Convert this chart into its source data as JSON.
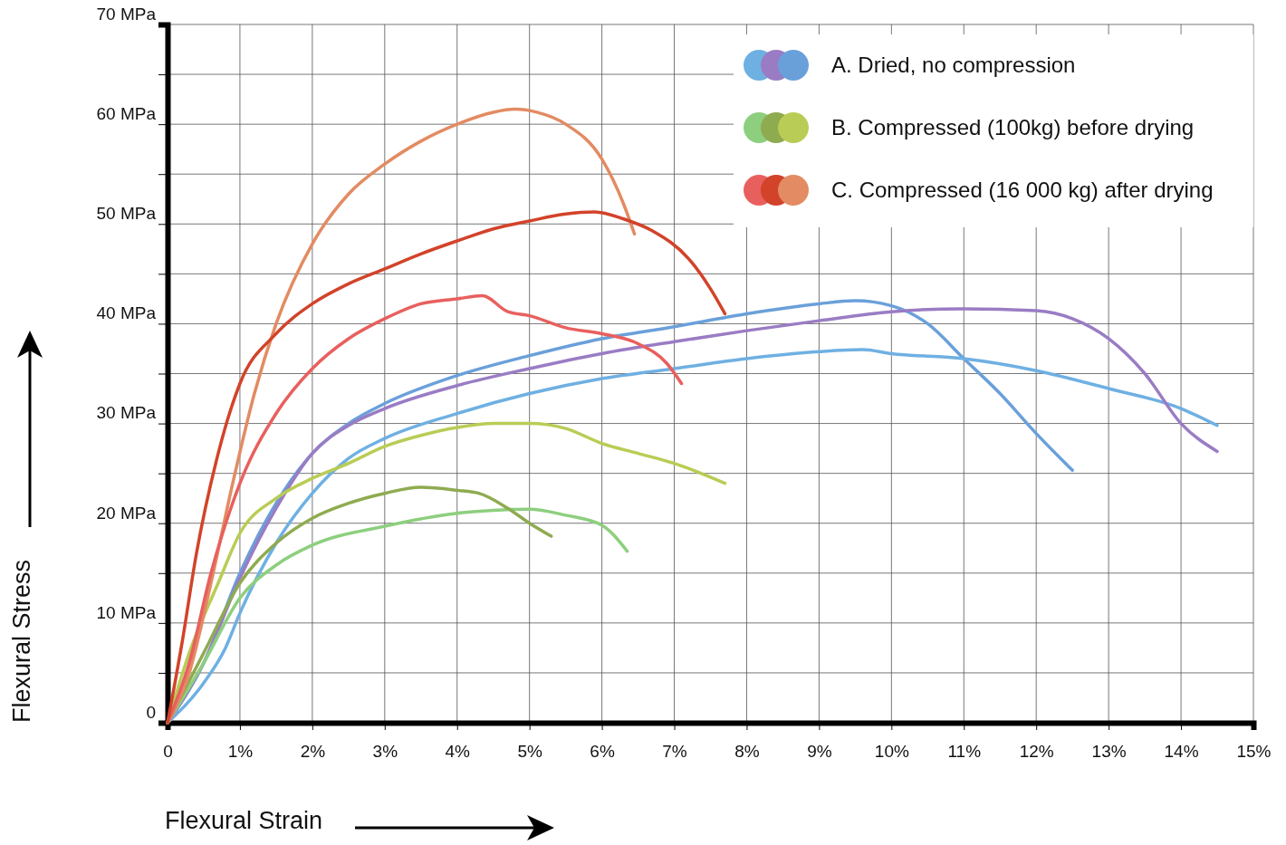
{
  "chart_data": {
    "type": "line",
    "xlabel": "Flexural Strain",
    "ylabel": "Flexural Stress",
    "xlim": [
      0,
      15
    ],
    "ylim": [
      0,
      70
    ],
    "xticks": [
      0,
      {
        "value": 1,
        "label": "1%"
      },
      {
        "value": 2,
        "label": "2%"
      },
      {
        "value": 3,
        "label": "3%"
      },
      {
        "value": 4,
        "label": "4%"
      },
      {
        "value": 5,
        "label": "5%"
      },
      {
        "value": 6,
        "label": "6%"
      },
      {
        "value": 7,
        "label": "7%"
      },
      {
        "value": 8,
        "label": "8%"
      },
      {
        "value": 9,
        "label": "9%"
      },
      {
        "value": 10,
        "label": "10%"
      },
      {
        "value": 11,
        "label": "11%"
      },
      {
        "value": 12,
        "label": "12%"
      },
      {
        "value": 13,
        "label": "13%"
      },
      {
        "value": 14,
        "label": "14%"
      },
      {
        "value": 15,
        "label": "15%"
      }
    ],
    "yticks": [
      0,
      {
        "value": 5,
        "label": null
      },
      {
        "value": 10,
        "label": "10 MPa"
      },
      {
        "value": 15,
        "label": null
      },
      {
        "value": 20,
        "label": "20 MPa"
      },
      {
        "value": 25,
        "label": null
      },
      {
        "value": 30,
        "label": "30 MPa"
      },
      {
        "value": 35,
        "label": null
      },
      {
        "value": 40,
        "label": "40 MPa"
      },
      {
        "value": 45,
        "label": null
      },
      {
        "value": 50,
        "label": "50 MPa"
      },
      {
        "value": 55,
        "label": null
      },
      {
        "value": 60,
        "label": "60 MPa"
      },
      {
        "value": 65,
        "label": null
      },
      {
        "value": 70,
        "label": "70 MPa"
      }
    ],
    "grid": true,
    "legend": "top right",
    "marker": "none",
    "line_style": "solid",
    "series": [
      {
        "name": "A. Dried, no compression",
        "color": "#6aa0da",
        "x": [
          0,
          0.5,
          1,
          1.5,
          2,
          2.5,
          3,
          4,
          5,
          6,
          7,
          8,
          9,
          9.5,
          10,
          10.5,
          11,
          11.5,
          12,
          12.5
        ],
        "values": [
          0,
          6,
          15,
          22,
          27,
          30,
          32,
          34.8,
          36.8,
          38.5,
          39.7,
          41,
          42,
          42.3,
          41.8,
          40,
          36.5,
          33,
          29,
          25.3
        ]
      },
      {
        "color": "#6fb0e2",
        "x": [
          0,
          0.5,
          0.8,
          1,
          1.5,
          2,
          2.5,
          3,
          4,
          5,
          6,
          7,
          8,
          9,
          9.6,
          10,
          11,
          12,
          13,
          14,
          14.5
        ],
        "values": [
          0,
          4,
          7.5,
          11,
          18,
          23,
          26.5,
          28.5,
          31,
          33,
          34.5,
          35.5,
          36.5,
          37.2,
          37.4,
          37,
          36.5,
          35.3,
          33.5,
          31.5,
          29.8
        ]
      },
      {
        "color": "#9a7cc4",
        "x": [
          0,
          0.5,
          1,
          1.5,
          2,
          2.5,
          3,
          4,
          5,
          6,
          7,
          8,
          9,
          10,
          11,
          12,
          12.5,
          13,
          13.5,
          14,
          14.5
        ],
        "values": [
          0,
          6,
          14.5,
          21.5,
          27,
          29.8,
          31.5,
          33.8,
          35.5,
          37,
          38.2,
          39.3,
          40.3,
          41.2,
          41.5,
          41.3,
          40.5,
          38.5,
          35,
          30,
          27.2
        ]
      },
      {
        "name": "B. Compressed (100kg) before drying",
        "color": "#b9cc55",
        "x": [
          0,
          0.3,
          0.7,
          1,
          1.5,
          2,
          2.5,
          3,
          3.5,
          4,
          4.5,
          5,
          5.5,
          6,
          6.5,
          7,
          7.7
        ],
        "values": [
          0,
          7,
          14,
          19,
          22.5,
          24.5,
          26,
          27.7,
          28.8,
          29.6,
          30,
          30,
          29.5,
          28,
          27,
          26,
          24
        ]
      },
      {
        "color": "#8dcf7e",
        "x": [
          0,
          0.5,
          1,
          1.5,
          2,
          3,
          4,
          4.5,
          5,
          5.5,
          6,
          6.35
        ],
        "values": [
          0,
          6,
          12.5,
          15.8,
          17.8,
          19.7,
          21,
          21.3,
          21.4,
          20.8,
          19.8,
          17.2
        ]
      },
      {
        "color": "#8fab50",
        "x": [
          0,
          0.5,
          1,
          1.5,
          2,
          2.5,
          3,
          3.5,
          4,
          4.3,
          4.7,
          5,
          5.3
        ],
        "values": [
          0,
          7,
          14,
          18,
          20.5,
          22,
          23,
          23.6,
          23.3,
          23,
          21.5,
          20,
          18.7
        ]
      },
      {
        "name": "C. Compressed (16 000 kg) after drying",
        "color": "#e38b62",
        "x": [
          0,
          0.3,
          0.6,
          0.9,
          1.2,
          1.5,
          2,
          2.5,
          3,
          3.5,
          4,
          4.5,
          4.8,
          5.1,
          5.5,
          6,
          6.3,
          6.45
        ],
        "values": [
          0,
          5,
          14,
          24,
          33,
          40,
          48,
          53,
          56,
          58.3,
          60,
          61.2,
          61.5,
          61.2,
          60,
          56.5,
          52,
          49
        ]
      },
      {
        "color": "#e8605e",
        "x": [
          0,
          0.3,
          0.6,
          1,
          1.5,
          2,
          2.5,
          3,
          3.5,
          4,
          4.35,
          4.7,
          5,
          5.5,
          6,
          6.5,
          6.9,
          7.1
        ],
        "values": [
          0,
          6,
          15,
          24,
          31,
          35.5,
          38.5,
          40.5,
          42,
          42.5,
          42.8,
          41.2,
          40.8,
          39.6,
          39,
          38,
          36,
          34
        ]
      },
      {
        "color": "#d2432a",
        "x": [
          0,
          0.2,
          0.4,
          0.7,
          1,
          1.5,
          2,
          2.5,
          3,
          3.5,
          4,
          4.5,
          5,
          5.5,
          5.9,
          6.3,
          6.7,
          7.2,
          7.5,
          7.7
        ],
        "values": [
          0,
          8,
          17,
          27,
          34,
          39,
          42,
          44,
          45.5,
          47,
          48.3,
          49.5,
          50.3,
          51,
          51.2,
          50.5,
          49.3,
          46.5,
          43.5,
          41
        ]
      }
    ]
  }
}
